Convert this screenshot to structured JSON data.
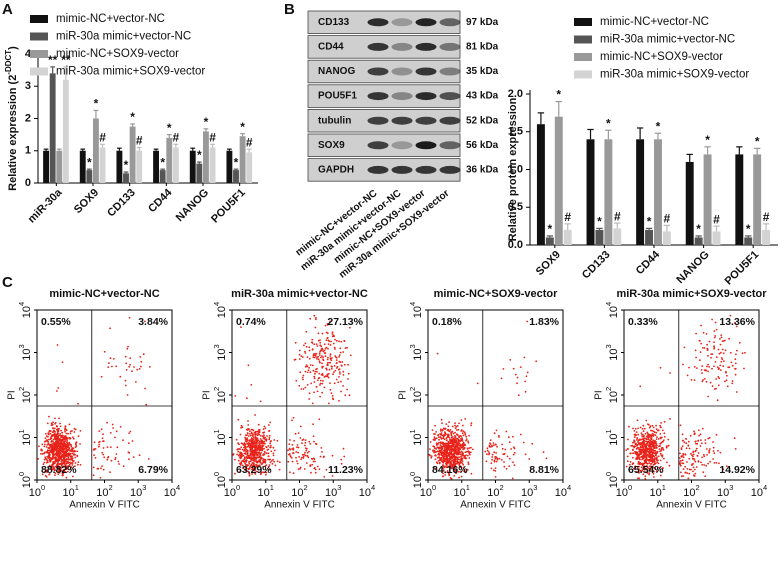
{
  "chart_data": [
    {
      "type": "bar",
      "panel": "A",
      "ylabel": "Relative expression (2",
      "ylabel_sup": "-DDCT",
      "ylabel_end": ")",
      "categories": [
        "miR-30a",
        "SOX9",
        "CD133",
        "CD44",
        "NANOG",
        "POU5F1"
      ],
      "series": [
        {
          "name": "mimic-NC+vector-NC",
          "color": "#111111",
          "values": [
            1.0,
            1.0,
            1.0,
            1.0,
            1.0,
            1.0
          ],
          "errors": [
            0.05,
            0.05,
            0.08,
            0.05,
            0.08,
            0.05
          ],
          "annotations": [
            null,
            null,
            null,
            null,
            null,
            null
          ]
        },
        {
          "name": "miR-30a mimic+vector-NC",
          "color": "#555555",
          "values": [
            3.4,
            0.4,
            0.3,
            0.4,
            0.6,
            0.4
          ],
          "errors": [
            0.2,
            0.03,
            0.04,
            0.03,
            0.05,
            0.03
          ],
          "annotations": [
            "**",
            "*",
            "*",
            "*",
            "*",
            "*"
          ]
        },
        {
          "name": "mimic-NC+SOX9-vector",
          "color": "#999999",
          "values": [
            1.0,
            2.0,
            1.75,
            1.4,
            1.6,
            1.45
          ],
          "errors": [
            0.05,
            0.25,
            0.08,
            0.1,
            0.08,
            0.08
          ],
          "annotations": [
            null,
            "*",
            "*",
            "*",
            "*",
            "*"
          ]
        },
        {
          "name": "miR-30a mimic+SOX9-vector",
          "color": "#d3d3d3",
          "values": [
            3.2,
            1.1,
            1.0,
            1.1,
            1.1,
            0.95
          ],
          "errors": [
            0.4,
            0.1,
            0.1,
            0.1,
            0.1,
            0.1
          ],
          "annotations": [
            "**",
            "#",
            "#",
            "#",
            "#",
            "#"
          ]
        }
      ],
      "ylim": [
        0,
        4
      ],
      "yticks": [
        0,
        1,
        2,
        3,
        4
      ],
      "grid": false,
      "legend": "top-left"
    },
    {
      "type": "bar",
      "panel": "B",
      "ylabel": "Relative protein expression",
      "categories": [
        "SOX9",
        "CD133",
        "CD44",
        "NANOG",
        "POU5F1"
      ],
      "series": [
        {
          "name": "mimic-NC+vector-NC",
          "color": "#111111",
          "values": [
            1.6,
            1.4,
            1.4,
            1.1,
            1.2
          ],
          "errors": [
            0.15,
            0.13,
            0.15,
            0.1,
            0.1
          ],
          "annotations": [
            null,
            null,
            null,
            null,
            null
          ]
        },
        {
          "name": "miR-30a mimic+vector-NC",
          "color": "#555555",
          "values": [
            0.1,
            0.2,
            0.2,
            0.1,
            0.1
          ],
          "errors": [
            0.02,
            0.02,
            0.02,
            0.02,
            0.02
          ],
          "annotations": [
            "*",
            "*",
            "*",
            "*",
            "*"
          ]
        },
        {
          "name": "mimic-NC+SOX9-vector",
          "color": "#999999",
          "values": [
            1.7,
            1.4,
            1.4,
            1.2,
            1.2
          ],
          "errors": [
            0.2,
            0.12,
            0.08,
            0.1,
            0.08
          ],
          "annotations": [
            "*",
            "*",
            "*",
            "*",
            "*"
          ]
        },
        {
          "name": "miR-30a mimic+SOX9-vector",
          "color": "#d3d3d3",
          "values": [
            0.2,
            0.22,
            0.18,
            0.18,
            0.2
          ],
          "errors": [
            0.08,
            0.07,
            0.08,
            0.07,
            0.08
          ],
          "annotations": [
            "#",
            "#",
            "#",
            "#",
            "#"
          ]
        }
      ],
      "ylim": [
        0,
        2.0
      ],
      "yticks": [
        {
          "value": 0,
          "label": "0.0"
        },
        {
          "value": 0.5,
          "label": "0.5"
        },
        {
          "value": 1.0,
          "label": "1.0"
        },
        {
          "value": 1.5,
          "label": "1.5"
        },
        {
          "value": 2.0,
          "label": "2.0"
        }
      ],
      "grid": false,
      "legend": "top-right"
    },
    {
      "type": "flow",
      "panel": "C",
      "title": "mimic-NC+vector-NC",
      "xlabel": "Annexin V FITC",
      "ylabel": "PI",
      "log": true,
      "color": "#e8231a",
      "xlim": [
        1,
        10000
      ],
      "ylim": [
        1,
        10000
      ],
      "xticks": [
        {
          "value": 1,
          "label": "10",
          "sup": "0"
        },
        {
          "value": 10,
          "label": "10",
          "sup": "1"
        },
        {
          "value": 100,
          "label": "10",
          "sup": "2"
        },
        {
          "value": 1000,
          "label": "10",
          "sup": "3"
        },
        {
          "value": 10000,
          "label": "10",
          "sup": "4"
        }
      ],
      "yticks": [
        {
          "value": 1,
          "label": "10",
          "sup": "0"
        },
        {
          "value": 10,
          "label": "10",
          "sup": "1"
        },
        {
          "value": 100,
          "label": "10",
          "sup": "2"
        },
        {
          "value": 1000,
          "label": "10",
          "sup": "3"
        },
        {
          "value": 10000,
          "label": "10",
          "sup": "4"
        }
      ],
      "gate_x": 42,
      "gate_y": 55,
      "quadrants": {
        "values": [
          0.55,
          3.84,
          88.82,
          6.79
        ],
        "value_labels": [
          "0.55%",
          "3.84%",
          "88.82%",
          "6.79%"
        ]
      }
    },
    {
      "type": "flow",
      "title": "miR-30a mimic+vector-NC",
      "xlabel": "Annexin V FITC",
      "ylabel": "PI",
      "log": true,
      "color": "#e8231a",
      "xlim": [
        1,
        10000
      ],
      "ylim": [
        1,
        10000
      ],
      "xticks": [
        {
          "value": 1,
          "label": "10",
          "sup": "0"
        },
        {
          "value": 10,
          "label": "10",
          "sup": "1"
        },
        {
          "value": 100,
          "label": "10",
          "sup": "2"
        },
        {
          "value": 1000,
          "label": "10",
          "sup": "3"
        },
        {
          "value": 10000,
          "label": "10",
          "sup": "4"
        }
      ],
      "yticks": [
        {
          "value": 1,
          "label": "10",
          "sup": "0"
        },
        {
          "value": 10,
          "label": "10",
          "sup": "1"
        },
        {
          "value": 100,
          "label": "10",
          "sup": "2"
        },
        {
          "value": 1000,
          "label": "10",
          "sup": "3"
        },
        {
          "value": 10000,
          "label": "10",
          "sup": "4"
        }
      ],
      "gate_x": 42,
      "gate_y": 55,
      "quadrants": {
        "values": [
          0.74,
          27.13,
          63.29,
          11.23
        ],
        "value_labels": [
          "0.74%",
          "27.13%",
          "63.29%",
          "11.23%"
        ]
      }
    },
    {
      "type": "flow",
      "title": "mimic-NC+SOX9-vector",
      "xlabel": "Annexin V FITC",
      "ylabel": "PI",
      "log": true,
      "color": "#e8231a",
      "xlim": [
        1,
        10000
      ],
      "ylim": [
        1,
        10000
      ],
      "xticks": [
        {
          "value": 1,
          "label": "10",
          "sup": "0"
        },
        {
          "value": 10,
          "label": "10",
          "sup": "1"
        },
        {
          "value": 100,
          "label": "10",
          "sup": "2"
        },
        {
          "value": 1000,
          "label": "10",
          "sup": "3"
        },
        {
          "value": 10000,
          "label": "10",
          "sup": "4"
        }
      ],
      "yticks": [
        {
          "value": 1,
          "label": "10",
          "sup": "0"
        },
        {
          "value": 10,
          "label": "10",
          "sup": "1"
        },
        {
          "value": 100,
          "label": "10",
          "sup": "2"
        },
        {
          "value": 1000,
          "label": "10",
          "sup": "3"
        },
        {
          "value": 10000,
          "label": "10",
          "sup": "4"
        }
      ],
      "gate_x": 42,
      "gate_y": 55,
      "quadrants": {
        "values": [
          0.18,
          1.83,
          84.16,
          8.81
        ],
        "value_labels": [
          "0.18%",
          "1.83%",
          "84.16%",
          "8.81%"
        ]
      }
    },
    {
      "type": "flow",
      "title": "miR-30a mimic+SOX9-vector",
      "xlabel": "Annexin V FITC",
      "ylabel": "PI",
      "log": true,
      "color": "#e8231a",
      "xlim": [
        1,
        10000
      ],
      "ylim": [
        1,
        10000
      ],
      "xticks": [
        {
          "value": 1,
          "label": "10",
          "sup": "0"
        },
        {
          "value": 10,
          "label": "10",
          "sup": "1"
        },
        {
          "value": 100,
          "label": "10",
          "sup": "2"
        },
        {
          "value": 1000,
          "label": "10",
          "sup": "3"
        },
        {
          "value": 10000,
          "label": "10",
          "sup": "4"
        }
      ],
      "yticks": [
        {
          "value": 1,
          "label": "10",
          "sup": "0"
        },
        {
          "value": 10,
          "label": "10",
          "sup": "1"
        },
        {
          "value": 100,
          "label": "10",
          "sup": "2"
        },
        {
          "value": 1000,
          "label": "10",
          "sup": "3"
        },
        {
          "value": 10000,
          "label": "10",
          "sup": "4"
        }
      ],
      "gate_x": 42,
      "gate_y": 55,
      "quadrants": {
        "values": [
          0.33,
          13.36,
          65.54,
          14.92
        ],
        "value_labels": [
          "0.33%",
          "13.36%",
          "65.54%",
          "14.92%"
        ]
      }
    }
  ],
  "blot": {
    "proteins": [
      "CD133",
      "CD44",
      "NANOG",
      "POU5F1",
      "tubulin",
      "SOX9",
      "GAPDH"
    ],
    "sizes": [
      "97 kDa",
      "81 kDa",
      "35 kDa",
      "43 kDa",
      "52 kDa",
      "56 kDa",
      "36 kDa"
    ],
    "lanes": [
      "mimic-NC+vector-NC",
      "miR-30a mimic+vector-NC",
      "mimic-NC+SOX9-vector",
      "miR-30a mimic+SOX9-vector"
    ]
  }
}
